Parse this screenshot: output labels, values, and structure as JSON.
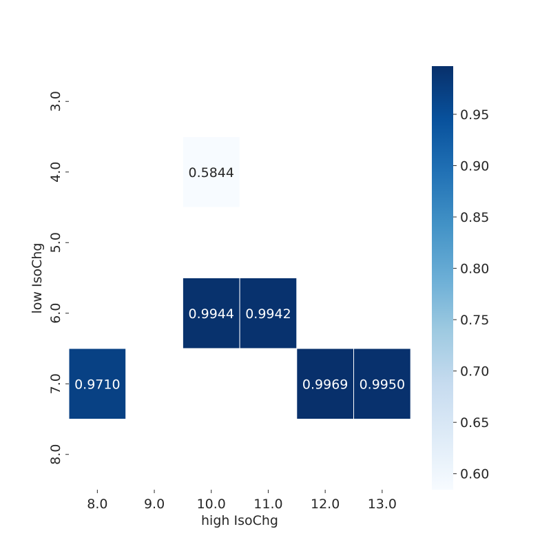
{
  "chart_data": {
    "type": "heatmap",
    "title": "",
    "xlabel": "high IsoChg",
    "ylabel": "low IsoChg",
    "x_categories": [
      "8.0",
      "9.0",
      "10.0",
      "11.0",
      "12.0",
      "13.0"
    ],
    "y_categories": [
      "3.0",
      "4.0",
      "5.0",
      "6.0",
      "7.0",
      "8.0"
    ],
    "cells": [
      {
        "x": "10.0",
        "y": "4.0",
        "value": 0.5844,
        "label": "0.5844"
      },
      {
        "x": "10.0",
        "y": "6.0",
        "value": 0.9944,
        "label": "0.9944"
      },
      {
        "x": "11.0",
        "y": "6.0",
        "value": 0.9942,
        "label": "0.9942"
      },
      {
        "x": "8.0",
        "y": "7.0",
        "value": 0.971,
        "label": "0.9710"
      },
      {
        "x": "12.0",
        "y": "7.0",
        "value": 0.9969,
        "label": "0.9969"
      },
      {
        "x": "13.0",
        "y": "7.0",
        "value": 0.995,
        "label": "0.9950"
      }
    ],
    "colormap": "Blues",
    "color_range": [
      0.5844,
      0.9969
    ],
    "colorbar": {
      "ticks": [
        "0.60",
        "0.65",
        "0.70",
        "0.75",
        "0.80",
        "0.85",
        "0.90",
        "0.95"
      ],
      "position": "right"
    },
    "grid": false
  }
}
